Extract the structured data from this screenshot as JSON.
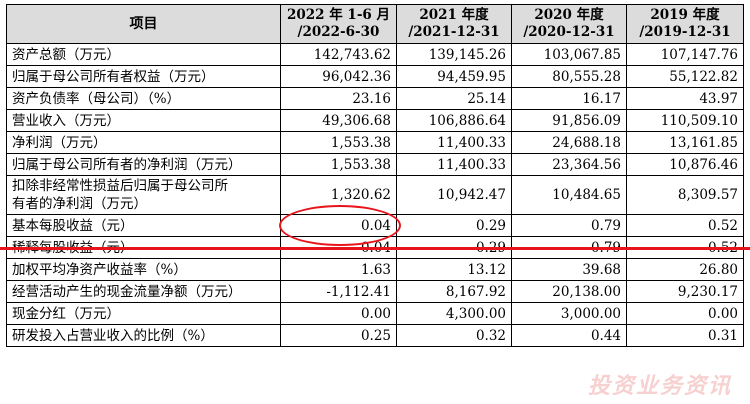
{
  "table": {
    "header": {
      "item": "项目",
      "cols": [
        {
          "line1": "2022 年 1-6 月",
          "line2": "/2022-6-30"
        },
        {
          "line1": "2021 年度",
          "line2": "/2021-12-31"
        },
        {
          "line1": "2020 年度",
          "line2": "/2020-12-31"
        },
        {
          "line1": "2019 年度",
          "line2": "/2019-12-31"
        }
      ]
    },
    "rows": [
      {
        "label": "资产总额（万元）",
        "values": [
          "142,743.62",
          "139,145.26",
          "103,067.85",
          "107,147.76"
        ]
      },
      {
        "label": "归属于母公司所有者权益（万元）",
        "values": [
          "96,042.36",
          "94,459.95",
          "80,555.28",
          "55,122.82"
        ]
      },
      {
        "label": "资产负债率（母公司）（%）",
        "values": [
          "23.16",
          "25.14",
          "16.17",
          "43.97"
        ]
      },
      {
        "label": "营业收入（万元）",
        "values": [
          "49,306.68",
          "106,886.64",
          "91,856.09",
          "110,509.10"
        ]
      },
      {
        "label": "净利润（万元）",
        "values": [
          "1,553.38",
          "11,400.33",
          "24,688.18",
          "13,161.85"
        ]
      },
      {
        "label": "归属于母公司所有者的净利润（万元）",
        "values": [
          "1,553.38",
          "11,400.33",
          "23,364.56",
          "10,876.46"
        ]
      },
      {
        "label_line1": "扣除非经常性损益后归属于母公司所",
        "label_line2": "有者的净利润（万元）",
        "values": [
          "1,320.62",
          "10,942.47",
          "10,484.65",
          "8,309.57"
        ]
      },
      {
        "label": "基本每股收益（元）",
        "values": [
          "0.04",
          "0.29",
          "0.79",
          "0.52"
        ]
      },
      {
        "label": "稀释每股收益（元）",
        "values": [
          "0.04",
          "0.29",
          "0.79",
          "0.52"
        ]
      },
      {
        "label": "加权平均净资产收益率（%）",
        "values": [
          "1.63",
          "13.12",
          "39.68",
          "26.80"
        ]
      },
      {
        "label": "经营活动产生的现金流量净额（万元）",
        "values": [
          "-1,112.41",
          "8,167.92",
          "20,138.00",
          "9,230.17"
        ]
      },
      {
        "label": "现金分红（万元）",
        "values": [
          "0.00",
          "4,300.00",
          "3,000.00",
          "0.00"
        ]
      },
      {
        "label": "研发投入占营业收入的比例（%）",
        "values": [
          "0.25",
          "0.32",
          "0.44",
          "0.31"
        ]
      }
    ]
  },
  "annotations": {
    "highlight_color": "#e8141c",
    "watermark": "投资业务资讯"
  }
}
